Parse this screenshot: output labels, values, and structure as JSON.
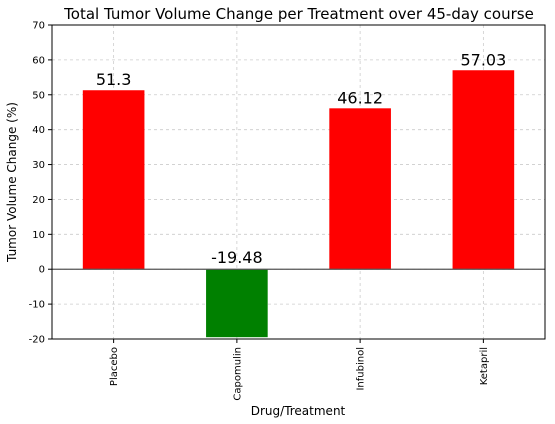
{
  "chart_data": {
    "type": "bar",
    "title": "Total Tumor Volume Change per Treatment over 45-day course",
    "xlabel": "Drug/Treatment",
    "ylabel": "Tumor Volume Change (%)",
    "categories": [
      "Placebo",
      "Capomulin",
      "Infubinol",
      "Ketapril"
    ],
    "values": [
      51.3,
      -19.48,
      46.12,
      57.03
    ],
    "value_labels": [
      "51.3",
      "-19.48",
      "46.12",
      "57.03"
    ],
    "ylim": [
      -20,
      70
    ],
    "yticks": [
      -20,
      -10,
      0,
      10,
      20,
      30,
      40,
      50,
      60,
      70
    ],
    "grid": true,
    "colors": {
      "positive": "#ff0000",
      "negative": "#008000"
    }
  }
}
